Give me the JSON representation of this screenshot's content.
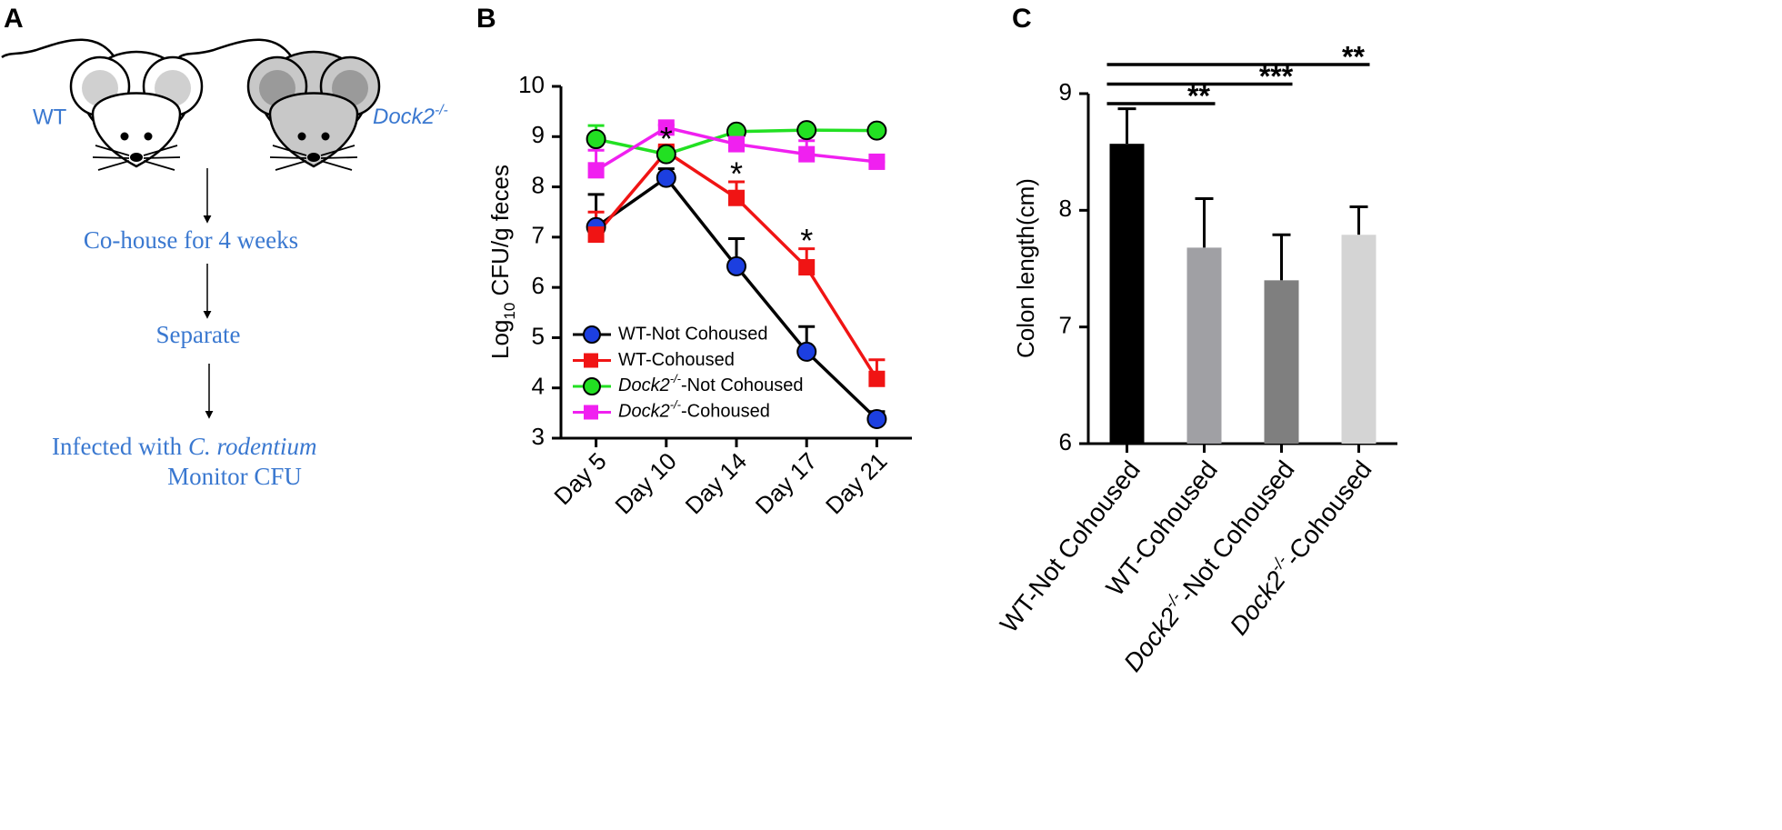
{
  "panel_labels": [
    "A",
    "B",
    "C"
  ],
  "diagram": {
    "wt_label": "WT",
    "ko_label": "Dock2-/-",
    "steps": [
      "Co-house for 4 weeks",
      "Separate"
    ],
    "final": {
      "prefix": "Infected with ",
      "species": "C. rodentium",
      "line2": "Monitor CFU"
    }
  },
  "chart_data": [
    {
      "type": "line",
      "ylabel": "Log10 CFU/g feces",
      "categories": [
        "Day 5",
        "Day 10",
        "Day 14",
        "Day 17",
        "Day 21"
      ],
      "ylim": [
        3,
        10
      ],
      "yticks": [
        3,
        4,
        5,
        6,
        7,
        8,
        9,
        10
      ],
      "series": [
        {
          "name": "WT-Not Cohoused",
          "color": "#1c3fe0",
          "line_color": "#000000",
          "marker": "circle",
          "values": [
            7.2,
            8.18,
            6.42,
            4.72,
            3.38
          ],
          "errors": [
            0.65,
            0.18,
            0.55,
            0.5,
            0.15
          ]
        },
        {
          "name": "WT-Cohoused",
          "color": "#f01414",
          "line_color": "#f01414",
          "marker": "square",
          "values": [
            7.05,
            8.7,
            7.78,
            6.4,
            4.18
          ],
          "errors": [
            0.45,
            0.1,
            0.32,
            0.37,
            0.38
          ]
        },
        {
          "name": "Dock2-/--Not Cohoused",
          "color": "#22e022",
          "line_color": "#22e022",
          "marker": "circle",
          "values": [
            8.95,
            8.65,
            9.1,
            9.13,
            9.12
          ],
          "errors": [
            0.27,
            0,
            0,
            0.05,
            0
          ]
        },
        {
          "name": "Dock2-/--Cohoused",
          "color": "#f020f0",
          "line_color": "#f020f0",
          "marker": "square",
          "values": [
            8.33,
            9.18,
            8.85,
            8.65,
            8.5
          ],
          "errors": [
            0.4,
            0.05,
            0.1,
            0.27,
            0
          ]
        }
      ],
      "annotations": [
        {
          "text": "*",
          "x": "Day 10",
          "series": "WT-Cohoused"
        },
        {
          "text": "*",
          "x": "Day 14",
          "series": "WT-Cohoused"
        },
        {
          "text": "*",
          "x": "Day 17",
          "series": "WT-Cohoused"
        }
      ]
    },
    {
      "type": "bar",
      "ylabel": "Colon length(cm)",
      "categories": [
        "WT-Not Cohoused",
        "WT-Cohoused",
        "Dock2-/--Not Cohoused",
        "Dock2-/--Cohoused"
      ],
      "values": [
        8.57,
        7.68,
        7.4,
        7.79
      ],
      "errors": [
        0.3,
        0.42,
        0.39,
        0.24
      ],
      "colors": [
        "#000000",
        "#a0a0a4",
        "#7f7f7f",
        "#d4d4d4"
      ],
      "ylim": [
        6,
        9
      ],
      "yticks": [
        6,
        7,
        8,
        9
      ],
      "significance": [
        {
          "from": "WT-Not Cohoused",
          "to": "WT-Cohoused",
          "label": "**"
        },
        {
          "from": "WT-Not Cohoused",
          "to": "Dock2-/--Not Cohoused",
          "label": "***"
        },
        {
          "from": "WT-Not Cohoused",
          "to": "Dock2-/--Cohoused",
          "label": "**"
        }
      ]
    }
  ]
}
